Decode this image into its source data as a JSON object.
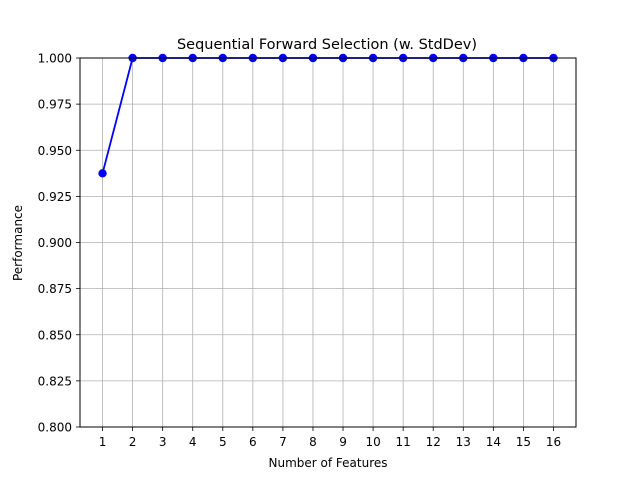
{
  "chart_data": {
    "type": "line",
    "title": "Sequential Forward Selection (w. StdDev)",
    "xlabel": "Number of Features",
    "ylabel": "Performance",
    "x": [
      1,
      2,
      3,
      4,
      5,
      6,
      7,
      8,
      9,
      10,
      11,
      12,
      13,
      14,
      15,
      16
    ],
    "series": [
      {
        "values": [
          0.9375,
          1.0,
          1.0,
          1.0,
          1.0,
          1.0,
          1.0,
          1.0,
          1.0,
          1.0,
          1.0,
          1.0,
          1.0,
          1.0,
          1.0,
          1.0
        ],
        "color": "#0000ff"
      }
    ],
    "xlim": [
      0.25,
      16.75
    ],
    "ylim": [
      0.8,
      1.0
    ],
    "yticks": [
      "0.800",
      "0.825",
      "0.850",
      "0.875",
      "0.900",
      "0.925",
      "0.950",
      "0.975",
      "1.000"
    ],
    "xticks": [
      "1",
      "2",
      "3",
      "4",
      "5",
      "6",
      "7",
      "8",
      "9",
      "10",
      "11",
      "12",
      "13",
      "14",
      "15",
      "16"
    ],
    "grid": true,
    "grid_color": "#b0b0b0",
    "marker": "circle"
  }
}
